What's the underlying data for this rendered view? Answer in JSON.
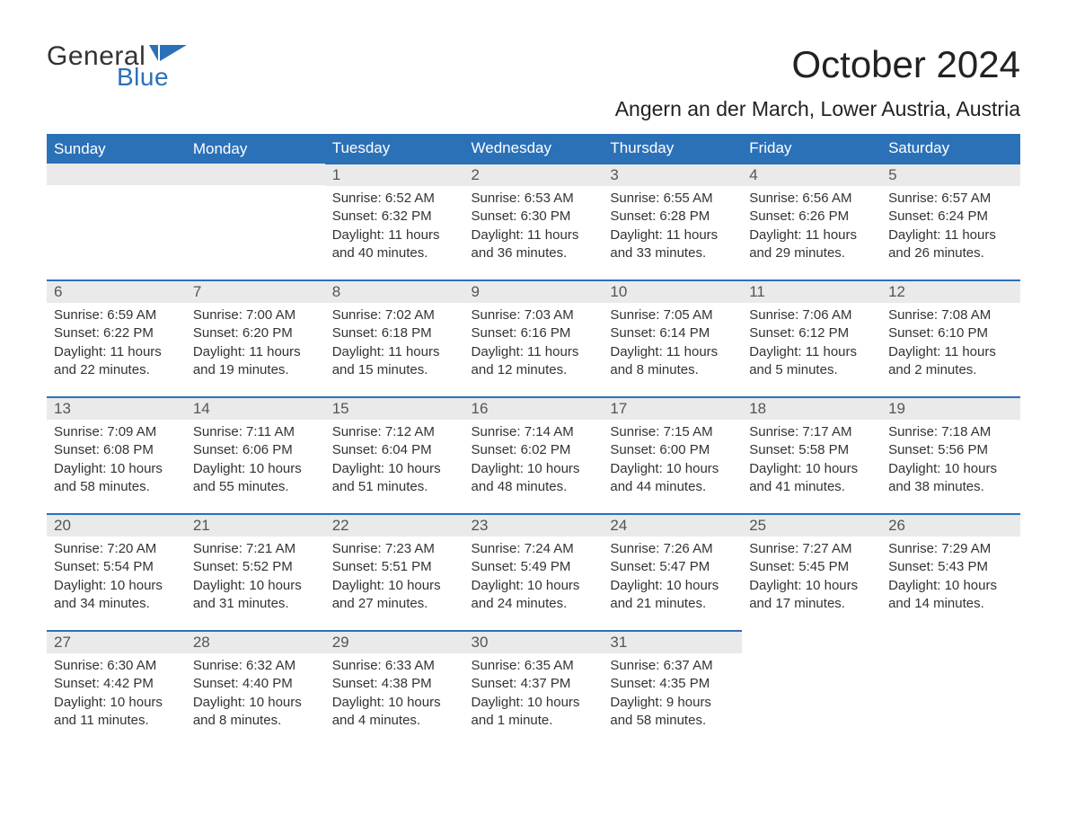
{
  "branding": {
    "logo_word1": "General",
    "logo_word2": "Blue",
    "logo_word1_color": "#333333",
    "logo_word2_color": "#2b71b8",
    "flag_color": "#2b71b8"
  },
  "header": {
    "month_title": "October 2024",
    "location": "Angern an der March, Lower Austria, Austria"
  },
  "calendar": {
    "header_bg": "#2b71b8",
    "header_fg": "#ffffff",
    "row_accent": "#2b71b8",
    "daynum_bg": "#eaeaea",
    "text_color": "#333333",
    "columns": [
      "Sunday",
      "Monday",
      "Tuesday",
      "Wednesday",
      "Thursday",
      "Friday",
      "Saturday"
    ],
    "weeks": [
      [
        {
          "blank": true
        },
        {
          "blank": true
        },
        {
          "d": "1",
          "sr": "Sunrise: 6:52 AM",
          "ss": "Sunset: 6:32 PM",
          "dl1": "Daylight: 11 hours",
          "dl2": "and 40 minutes."
        },
        {
          "d": "2",
          "sr": "Sunrise: 6:53 AM",
          "ss": "Sunset: 6:30 PM",
          "dl1": "Daylight: 11 hours",
          "dl2": "and 36 minutes."
        },
        {
          "d": "3",
          "sr": "Sunrise: 6:55 AM",
          "ss": "Sunset: 6:28 PM",
          "dl1": "Daylight: 11 hours",
          "dl2": "and 33 minutes."
        },
        {
          "d": "4",
          "sr": "Sunrise: 6:56 AM",
          "ss": "Sunset: 6:26 PM",
          "dl1": "Daylight: 11 hours",
          "dl2": "and 29 minutes."
        },
        {
          "d": "5",
          "sr": "Sunrise: 6:57 AM",
          "ss": "Sunset: 6:24 PM",
          "dl1": "Daylight: 11 hours",
          "dl2": "and 26 minutes."
        }
      ],
      [
        {
          "d": "6",
          "sr": "Sunrise: 6:59 AM",
          "ss": "Sunset: 6:22 PM",
          "dl1": "Daylight: 11 hours",
          "dl2": "and 22 minutes."
        },
        {
          "d": "7",
          "sr": "Sunrise: 7:00 AM",
          "ss": "Sunset: 6:20 PM",
          "dl1": "Daylight: 11 hours",
          "dl2": "and 19 minutes."
        },
        {
          "d": "8",
          "sr": "Sunrise: 7:02 AM",
          "ss": "Sunset: 6:18 PM",
          "dl1": "Daylight: 11 hours",
          "dl2": "and 15 minutes."
        },
        {
          "d": "9",
          "sr": "Sunrise: 7:03 AM",
          "ss": "Sunset: 6:16 PM",
          "dl1": "Daylight: 11 hours",
          "dl2": "and 12 minutes."
        },
        {
          "d": "10",
          "sr": "Sunrise: 7:05 AM",
          "ss": "Sunset: 6:14 PM",
          "dl1": "Daylight: 11 hours",
          "dl2": "and 8 minutes."
        },
        {
          "d": "11",
          "sr": "Sunrise: 7:06 AM",
          "ss": "Sunset: 6:12 PM",
          "dl1": "Daylight: 11 hours",
          "dl2": "and 5 minutes."
        },
        {
          "d": "12",
          "sr": "Sunrise: 7:08 AM",
          "ss": "Sunset: 6:10 PM",
          "dl1": "Daylight: 11 hours",
          "dl2": "and 2 minutes."
        }
      ],
      [
        {
          "d": "13",
          "sr": "Sunrise: 7:09 AM",
          "ss": "Sunset: 6:08 PM",
          "dl1": "Daylight: 10 hours",
          "dl2": "and 58 minutes."
        },
        {
          "d": "14",
          "sr": "Sunrise: 7:11 AM",
          "ss": "Sunset: 6:06 PM",
          "dl1": "Daylight: 10 hours",
          "dl2": "and 55 minutes."
        },
        {
          "d": "15",
          "sr": "Sunrise: 7:12 AM",
          "ss": "Sunset: 6:04 PM",
          "dl1": "Daylight: 10 hours",
          "dl2": "and 51 minutes."
        },
        {
          "d": "16",
          "sr": "Sunrise: 7:14 AM",
          "ss": "Sunset: 6:02 PM",
          "dl1": "Daylight: 10 hours",
          "dl2": "and 48 minutes."
        },
        {
          "d": "17",
          "sr": "Sunrise: 7:15 AM",
          "ss": "Sunset: 6:00 PM",
          "dl1": "Daylight: 10 hours",
          "dl2": "and 44 minutes."
        },
        {
          "d": "18",
          "sr": "Sunrise: 7:17 AM",
          "ss": "Sunset: 5:58 PM",
          "dl1": "Daylight: 10 hours",
          "dl2": "and 41 minutes."
        },
        {
          "d": "19",
          "sr": "Sunrise: 7:18 AM",
          "ss": "Sunset: 5:56 PM",
          "dl1": "Daylight: 10 hours",
          "dl2": "and 38 minutes."
        }
      ],
      [
        {
          "d": "20",
          "sr": "Sunrise: 7:20 AM",
          "ss": "Sunset: 5:54 PM",
          "dl1": "Daylight: 10 hours",
          "dl2": "and 34 minutes."
        },
        {
          "d": "21",
          "sr": "Sunrise: 7:21 AM",
          "ss": "Sunset: 5:52 PM",
          "dl1": "Daylight: 10 hours",
          "dl2": "and 31 minutes."
        },
        {
          "d": "22",
          "sr": "Sunrise: 7:23 AM",
          "ss": "Sunset: 5:51 PM",
          "dl1": "Daylight: 10 hours",
          "dl2": "and 27 minutes."
        },
        {
          "d": "23",
          "sr": "Sunrise: 7:24 AM",
          "ss": "Sunset: 5:49 PM",
          "dl1": "Daylight: 10 hours",
          "dl2": "and 24 minutes."
        },
        {
          "d": "24",
          "sr": "Sunrise: 7:26 AM",
          "ss": "Sunset: 5:47 PM",
          "dl1": "Daylight: 10 hours",
          "dl2": "and 21 minutes."
        },
        {
          "d": "25",
          "sr": "Sunrise: 7:27 AM",
          "ss": "Sunset: 5:45 PM",
          "dl1": "Daylight: 10 hours",
          "dl2": "and 17 minutes."
        },
        {
          "d": "26",
          "sr": "Sunrise: 7:29 AM",
          "ss": "Sunset: 5:43 PM",
          "dl1": "Daylight: 10 hours",
          "dl2": "and 14 minutes."
        }
      ],
      [
        {
          "d": "27",
          "sr": "Sunrise: 6:30 AM",
          "ss": "Sunset: 4:42 PM",
          "dl1": "Daylight: 10 hours",
          "dl2": "and 11 minutes."
        },
        {
          "d": "28",
          "sr": "Sunrise: 6:32 AM",
          "ss": "Sunset: 4:40 PM",
          "dl1": "Daylight: 10 hours",
          "dl2": "and 8 minutes."
        },
        {
          "d": "29",
          "sr": "Sunrise: 6:33 AM",
          "ss": "Sunset: 4:38 PM",
          "dl1": "Daylight: 10 hours",
          "dl2": "and 4 minutes."
        },
        {
          "d": "30",
          "sr": "Sunrise: 6:35 AM",
          "ss": "Sunset: 4:37 PM",
          "dl1": "Daylight: 10 hours",
          "dl2": "and 1 minute."
        },
        {
          "d": "31",
          "sr": "Sunrise: 6:37 AM",
          "ss": "Sunset: 4:35 PM",
          "dl1": "Daylight: 9 hours",
          "dl2": "and 58 minutes."
        },
        {
          "blank": true,
          "noborder": true
        },
        {
          "blank": true,
          "noborder": true
        }
      ]
    ]
  }
}
